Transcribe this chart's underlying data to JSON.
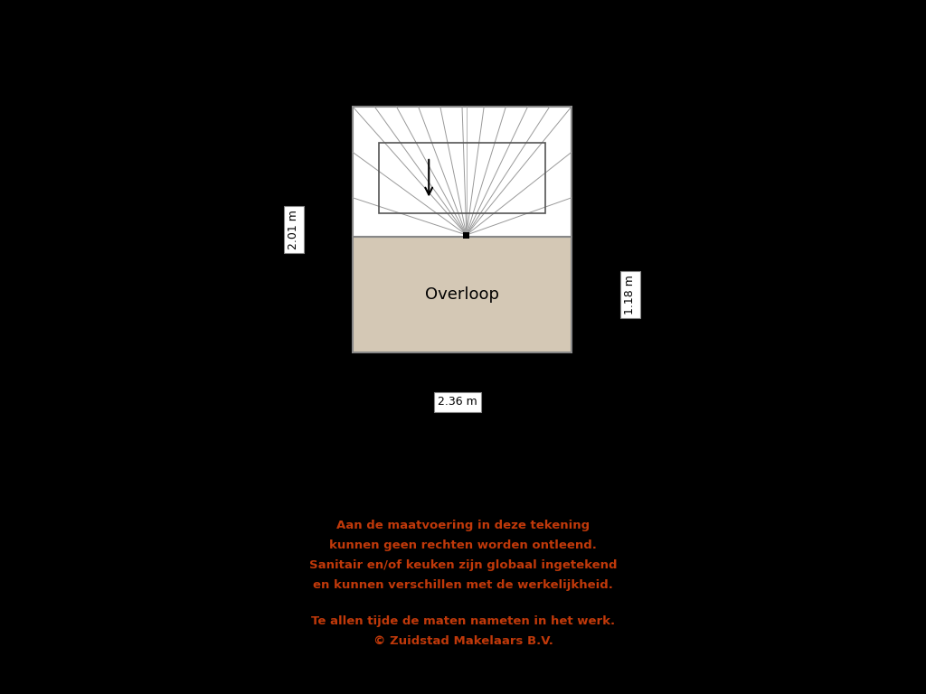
{
  "background_color": "#000000",
  "floor_bg": "#d4c8b5",
  "staircase_bg": "#ffffff",
  "room_label": "Overloop",
  "dim_horizontal": "2.36 m",
  "dim_vertical_left": "2.01 m",
  "dim_vertical_right": "1.18 m",
  "disclaimer_line1": "Aan de maatvoering in deze tekening",
  "disclaimer_line2": "kunnen geen rechten worden ontleend.",
  "disclaimer_line3": "Sanitair en/of keuken zijn globaal ingetekend",
  "disclaimer_line4": "en kunnen verschillen met de werkelijkheid.",
  "disclaimer_line5": "Te allen tijde de maten nameten in het werk.",
  "disclaimer_line6": "© Zuidstad Makelaars B.V.",
  "disclaimer_color": "#c0390a",
  "text_color": "#000000",
  "line_color": "#888888"
}
